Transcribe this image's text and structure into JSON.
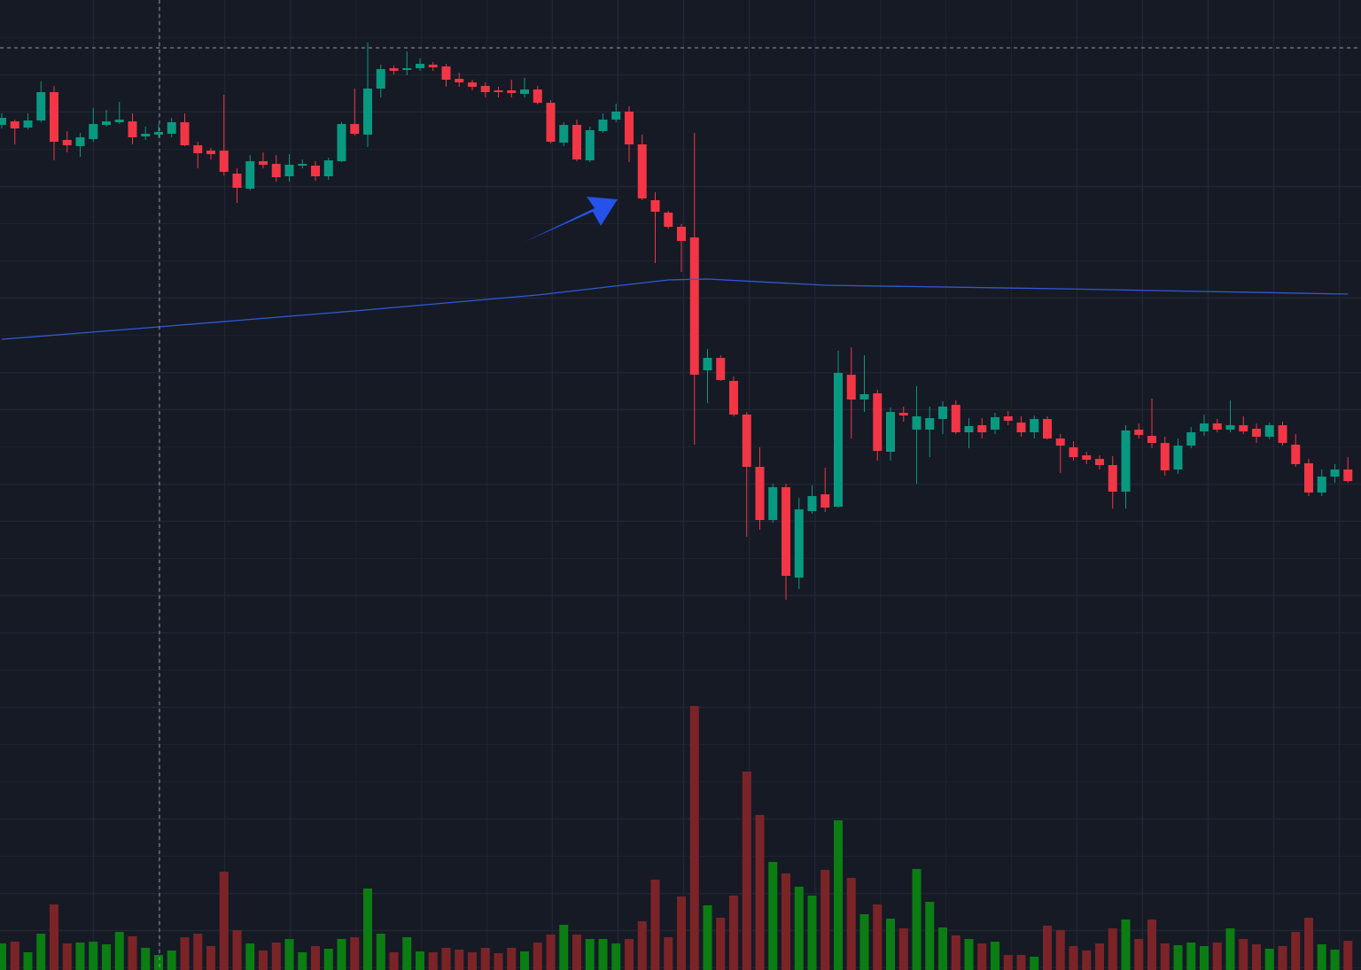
{
  "chart_data": {
    "type": "candlestick",
    "ylim": [
      0,
      1095
    ],
    "volume_ylim": [
      0,
      1095
    ],
    "up_color": "#089981",
    "down_color": "#f23645",
    "volume_up_color": "#0b7d12",
    "volume_down_color": "#7b2428",
    "open": [
      954,
      958,
      951,
      959,
      991,
      937,
      930,
      938,
      954,
      957,
      958,
      941,
      943,
      944,
      957,
      931,
      925,
      925,
      899,
      882,
      913,
      910,
      896,
      908,
      908,
      896,
      913,
      955,
      943,
      995,
      1018,
      1016,
      1018,
      1022,
      1020,
      1006,
      1002,
      998,
      993,
      993,
      989,
      994,
      979,
      934,
      954,
      914,
      947,
      960,
      969,
      932,
      869,
      855,
      839,
      827,
      677,
      691,
      665,
      627,
      568,
      508,
      545,
      443,
      518,
      537,
      523,
      672,
      644,
      651,
      585,
      629,
      610,
      610,
      622,
      638,
      607,
      615,
      610,
      625,
      618,
      607,
      622,
      600,
      590,
      581,
      577,
      570,
      540,
      610,
      603,
      595,
      565,
      592,
      608,
      617,
      610,
      615,
      611,
      602,
      615,
      593,
      572,
      539,
      557,
      565
    ],
    "high": [
      967,
      960,
      967,
      1003,
      998,
      947,
      945,
      973,
      971,
      980,
      967,
      952,
      955,
      962,
      967,
      935,
      928,
      988,
      905,
      920,
      923,
      920,
      921,
      915,
      913,
      917,
      957,
      995,
      1047,
      1022,
      1021,
      1037,
      1029,
      1025,
      1023,
      1013,
      1005,
      1002,
      997,
      1005,
      1007,
      998,
      982,
      957,
      960,
      952,
      967,
      978,
      975,
      943,
      878,
      857,
      842,
      945,
      701,
      694,
      670,
      630,
      590,
      549,
      549,
      533,
      547,
      567,
      699,
      703,
      694,
      655,
      635,
      636,
      659,
      636,
      642,
      643,
      623,
      623,
      629,
      631,
      625,
      626,
      625,
      605,
      597,
      585,
      581,
      580,
      615,
      617,
      645,
      602,
      600,
      613,
      627,
      622,
      643,
      625,
      617,
      618,
      619,
      605,
      577,
      565,
      571,
      579
    ],
    "low": [
      950,
      932,
      949,
      957,
      914,
      923,
      918,
      935,
      952,
      955,
      932,
      937,
      940,
      940,
      930,
      905,
      915,
      897,
      866,
      880,
      905,
      890,
      890,
      905,
      891,
      892,
      912,
      942,
      929,
      985,
      1011,
      1010,
      1015,
      1015,
      997,
      997,
      993,
      985,
      985,
      985,
      985,
      977,
      933,
      930,
      913,
      912,
      945,
      957,
      912,
      869,
      798,
      837,
      788,
      593,
      640,
      665,
      625,
      489,
      497,
      505,
      418,
      430,
      515,
      517,
      522,
      600,
      630,
      575,
      575,
      619,
      549,
      579,
      605,
      605,
      589,
      600,
      605,
      615,
      602,
      600,
      599,
      561,
      575,
      571,
      565,
      521,
      521,
      600,
      589,
      558,
      560,
      589,
      603,
      607,
      607,
      605,
      595,
      599,
      592,
      568,
      535,
      535,
      550,
      550
    ],
    "close": [
      962,
      950,
      959,
      991,
      935,
      931,
      940,
      955,
      958,
      960,
      940,
      944,
      946,
      957,
      931,
      922,
      921,
      901,
      883,
      913,
      909,
      895,
      909,
      910,
      896,
      914,
      955,
      944,
      995,
      1017,
      1015,
      1018,
      1023,
      1019,
      1005,
      1002,
      997,
      991,
      991,
      990,
      994,
      979,
      935,
      954,
      915,
      948,
      960,
      969,
      932,
      871,
      856,
      839,
      823,
      672,
      691,
      666,
      627,
      568,
      508,
      545,
      445,
      520,
      535,
      522,
      674,
      644,
      650,
      586,
      630,
      626,
      625,
      623,
      636,
      607,
      614,
      607,
      624,
      620,
      607,
      622,
      600,
      592,
      579,
      576,
      570,
      540,
      609,
      604,
      595,
      564,
      592,
      607,
      617,
      610,
      615,
      608,
      602,
      615,
      595,
      571,
      539,
      557,
      565,
      552
    ],
    "volume": [
      30,
      32,
      20,
      41,
      74,
      30,
      31,
      32,
      29,
      43,
      38,
      25,
      17,
      22,
      37,
      41,
      27,
      111,
      45,
      30,
      22,
      31,
      35,
      20,
      27,
      24,
      35,
      37,
      92,
      41,
      20,
      37,
      21,
      20,
      25,
      23,
      20,
      25,
      19,
      25,
      21,
      31,
      40,
      51,
      40,
      35,
      35,
      30,
      35,
      55,
      102,
      37,
      83,
      298,
      73,
      59,
      84,
      224,
      175,
      122,
      109,
      94,
      84,
      113,
      169,
      104,
      63,
      74,
      58,
      47,
      114,
      77,
      48,
      39,
      35,
      30,
      32,
      17,
      17,
      15,
      50,
      45,
      27,
      22,
      30,
      47,
      57,
      35,
      57,
      30,
      28,
      31,
      27,
      31,
      47,
      35,
      29,
      24,
      27,
      43,
      59,
      29,
      23,
      33
    ],
    "ma": {
      "color": "#2f5bd6",
      "x": [
        0,
        12,
        27,
        41,
        51,
        54,
        63,
        81,
        103
      ],
      "values": [
        712,
        726,
        744,
        762,
        779,
        780,
        773,
        769,
        763
      ]
    }
  }
}
